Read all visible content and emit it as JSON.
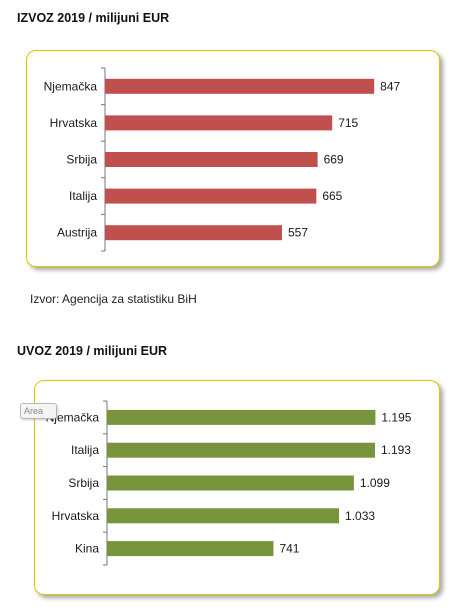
{
  "chart_data": [
    {
      "type": "bar",
      "orientation": "horizontal",
      "title": "IZVOZ 2019 / milijuni EUR",
      "categories": [
        "Njemačka",
        "Hrvatska",
        "Srbija",
        "Italija",
        "Austrija"
      ],
      "values": [
        847,
        715,
        669,
        665,
        557
      ],
      "value_labels": [
        "847",
        "715",
        "669",
        "665",
        "557"
      ],
      "xlim": [
        0,
        900
      ],
      "grid": false,
      "bar_color": "#c0504d"
    },
    {
      "type": "bar",
      "orientation": "horizontal",
      "title": "UVOZ 2019 / milijuni EUR",
      "categories": [
        "Njemačka",
        "Italija",
        "Srbija",
        "Hrvatska",
        "Kina"
      ],
      "values": [
        1195,
        1193,
        1099,
        1033,
        741
      ],
      "value_labels": [
        "1.195",
        "1.193",
        "1.099",
        "1.033",
        "741"
      ],
      "xlim": [
        0,
        1300
      ],
      "grid": false,
      "bar_color": "#77933c"
    }
  ],
  "source_text": "Izvor: Agencija za statistiku BiH",
  "area_tag": "Area"
}
